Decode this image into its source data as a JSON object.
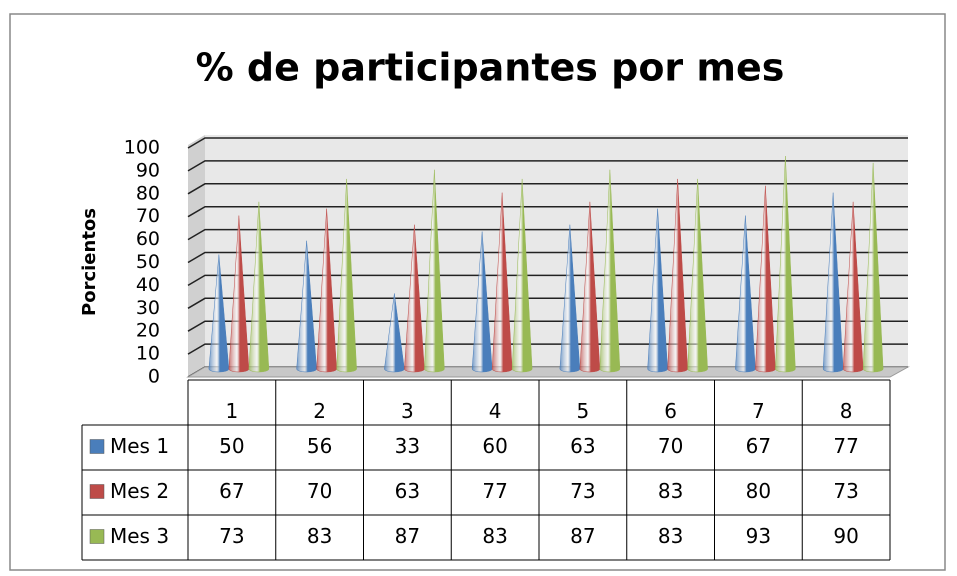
{
  "chart_data": {
    "type": "cone",
    "title": "% de participantes por mes",
    "y_label": "Porcientos",
    "categories": [
      "1",
      "2",
      "3",
      "4",
      "5",
      "6",
      "7",
      "8"
    ],
    "series": [
      {
        "name": "Mes 1",
        "color": "#4a7ebb",
        "values": [
          50,
          56,
          33,
          60,
          63,
          70,
          67,
          77
        ]
      },
      {
        "name": "Mes 2",
        "color": "#be4b48",
        "values": [
          67,
          70,
          63,
          77,
          73,
          83,
          80,
          73
        ]
      },
      {
        "name": "Mes 3",
        "color": "#98b954",
        "values": [
          73,
          83,
          87,
          83,
          87,
          83,
          93,
          90
        ]
      }
    ],
    "ylim": [
      0,
      100
    ],
    "yticks": [
      0,
      10,
      20,
      30,
      40,
      50,
      60,
      70,
      80,
      90,
      100
    ],
    "grid": true
  }
}
